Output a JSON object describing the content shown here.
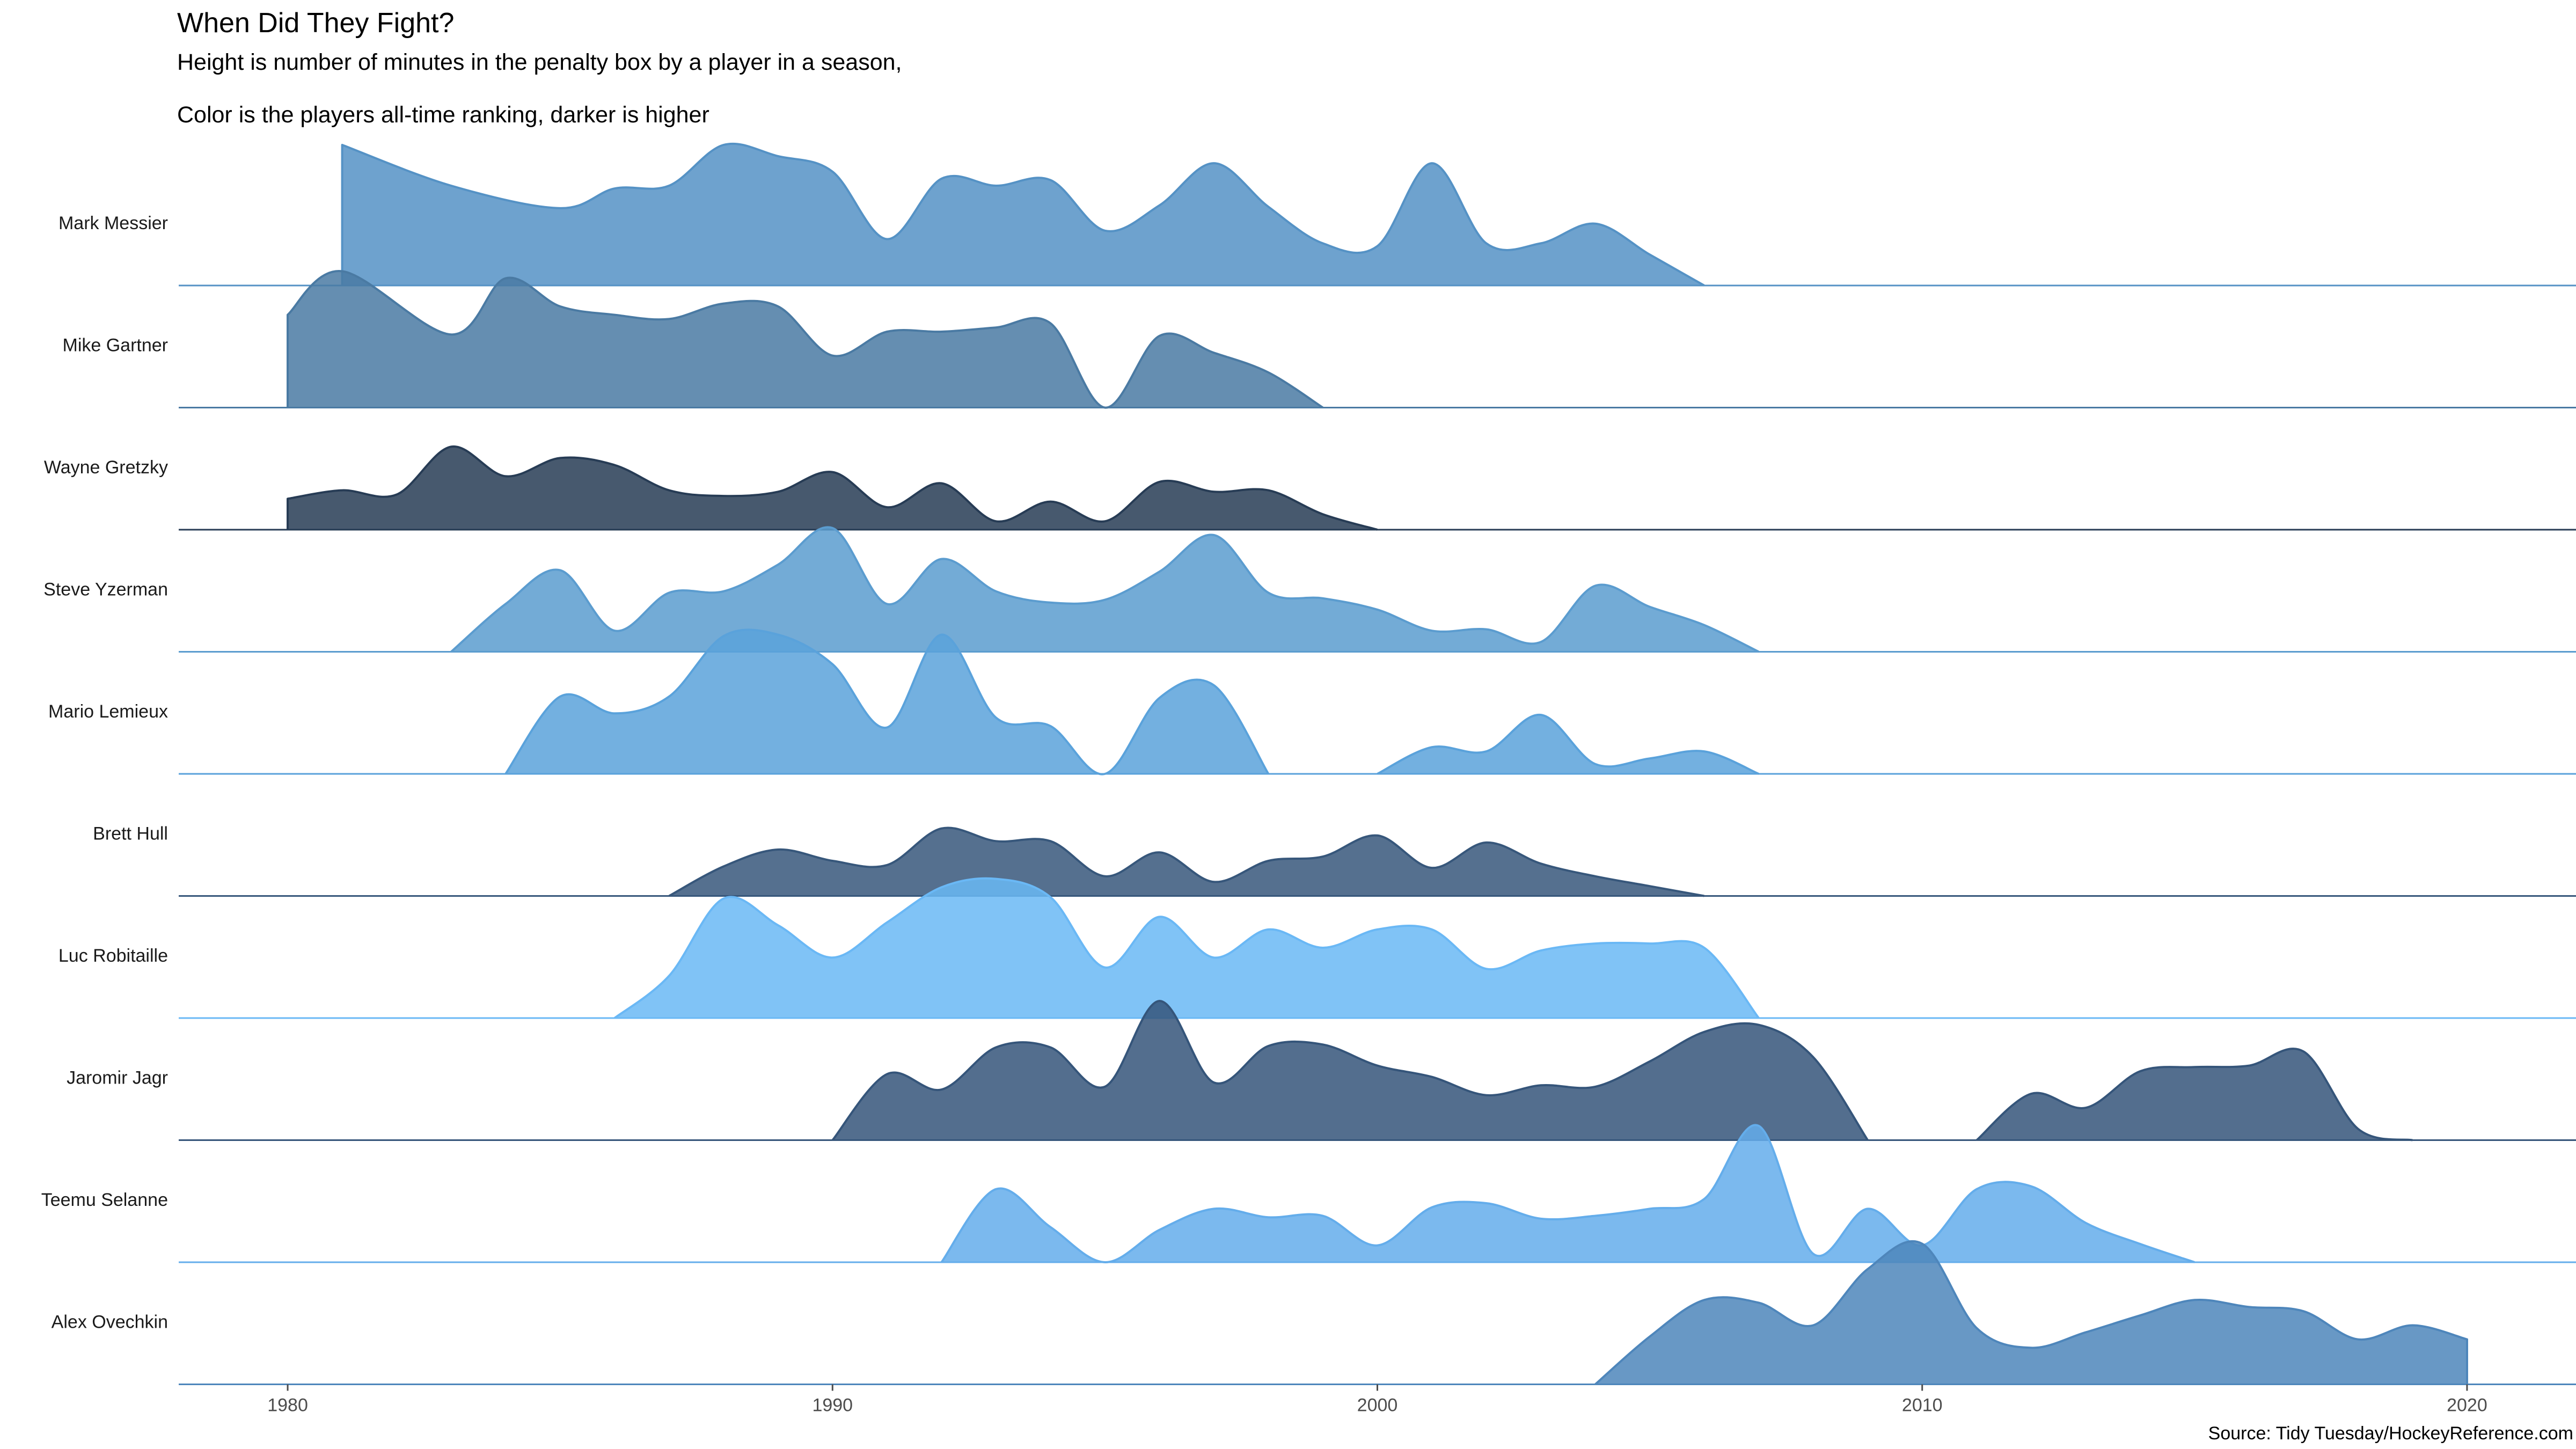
{
  "chart_data": {
    "type": "area",
    "title": "When Did They Fight?",
    "subtitle_lines": [
      "Height is number of minutes in the penalty box by a player in a season,",
      "Color is the players all-time ranking, darker is higher"
    ],
    "caption": "Source: Tidy Tuesday/HockeyReference.com",
    "x_ticks": [
      "1980",
      "1990",
      "2000",
      "2010",
      "2020"
    ],
    "xlim": [
      1978,
      2022
    ],
    "grid": false,
    "legend": "none",
    "series": [
      {
        "name": "Mark Messier",
        "color": "#5592c5",
        "points": [
          [
            1981,
            1.0
          ],
          [
            1983,
            0.71
          ],
          [
            1985,
            0.55
          ],
          [
            1986,
            0.69
          ],
          [
            1987,
            0.71
          ],
          [
            1988,
            1.0
          ],
          [
            1989,
            0.92
          ],
          [
            1990,
            0.81
          ],
          [
            1991,
            0.33
          ],
          [
            1992,
            0.76
          ],
          [
            1993,
            0.71
          ],
          [
            1994,
            0.75
          ],
          [
            1995,
            0.39
          ],
          [
            1996,
            0.57
          ],
          [
            1997,
            0.87
          ],
          [
            1998,
            0.56
          ],
          [
            1999,
            0.3
          ],
          [
            2000,
            0.28
          ],
          [
            2001,
            0.87
          ],
          [
            2002,
            0.3
          ],
          [
            2003,
            0.3
          ],
          [
            2004,
            0.44
          ],
          [
            2005,
            0.22
          ],
          [
            2006,
            0.0
          ]
        ]
      },
      {
        "name": "Mike Gartner",
        "color": "#4a7aa3",
        "points": [
          [
            1980,
            0.66
          ],
          [
            1981,
            0.97
          ],
          [
            1983,
            0.52
          ],
          [
            1984,
            0.92
          ],
          [
            1985,
            0.72
          ],
          [
            1986,
            0.66
          ],
          [
            1987,
            0.63
          ],
          [
            1988,
            0.74
          ],
          [
            1989,
            0.72
          ],
          [
            1990,
            0.37
          ],
          [
            1991,
            0.54
          ],
          [
            1992,
            0.54
          ],
          [
            1993,
            0.57
          ],
          [
            1994,
            0.6
          ],
          [
            1995,
            0.0
          ],
          [
            1996,
            0.51
          ],
          [
            1997,
            0.39
          ],
          [
            1998,
            0.25
          ],
          [
            1999,
            0.0
          ]
        ]
      },
      {
        "name": "Wayne Gretzky",
        "color": "#273c55",
        "points": [
          [
            1980,
            0.22
          ],
          [
            1981,
            0.28
          ],
          [
            1982,
            0.25
          ],
          [
            1983,
            0.59
          ],
          [
            1984,
            0.38
          ],
          [
            1985,
            0.51
          ],
          [
            1986,
            0.46
          ],
          [
            1987,
            0.28
          ],
          [
            1988,
            0.24
          ],
          [
            1989,
            0.27
          ],
          [
            1990,
            0.41
          ],
          [
            1991,
            0.16
          ],
          [
            1992,
            0.33
          ],
          [
            1993,
            0.06
          ],
          [
            1994,
            0.2
          ],
          [
            1995,
            0.06
          ],
          [
            1996,
            0.34
          ],
          [
            1997,
            0.27
          ],
          [
            1998,
            0.28
          ],
          [
            1999,
            0.11
          ],
          [
            2000,
            0.0
          ]
        ]
      },
      {
        "name": "Steve Yzerman",
        "color": "#5b9ccf",
        "points": [
          [
            1983,
            0.0
          ],
          [
            1984,
            0.34
          ],
          [
            1985,
            0.58
          ],
          [
            1986,
            0.15
          ],
          [
            1987,
            0.42
          ],
          [
            1988,
            0.43
          ],
          [
            1989,
            0.62
          ],
          [
            1990,
            0.88
          ],
          [
            1991,
            0.34
          ],
          [
            1992,
            0.66
          ],
          [
            1993,
            0.43
          ],
          [
            1994,
            0.35
          ],
          [
            1995,
            0.37
          ],
          [
            1996,
            0.57
          ],
          [
            1997,
            0.83
          ],
          [
            1998,
            0.42
          ],
          [
            1999,
            0.38
          ],
          [
            2000,
            0.3
          ],
          [
            2001,
            0.15
          ],
          [
            2002,
            0.16
          ],
          [
            2003,
            0.07
          ],
          [
            2004,
            0.47
          ],
          [
            2005,
            0.32
          ],
          [
            2006,
            0.19
          ],
          [
            2007,
            0.0
          ]
        ]
      },
      {
        "name": "Mario Lemieux",
        "color": "#5aa2db",
        "points": [
          [
            1984,
            0.0
          ],
          [
            1985,
            0.55
          ],
          [
            1986,
            0.43
          ],
          [
            1987,
            0.55
          ],
          [
            1988,
            0.98
          ],
          [
            1989,
            0.99
          ],
          [
            1990,
            0.78
          ],
          [
            1991,
            0.33
          ],
          [
            1992,
            0.99
          ],
          [
            1993,
            0.4
          ],
          [
            1994,
            0.34
          ],
          [
            1995,
            0.0
          ],
          [
            1996,
            0.54
          ],
          [
            1997,
            0.63
          ],
          [
            1998,
            0.0
          ],
          [
            2000,
            0.0
          ],
          [
            2001,
            0.19
          ],
          [
            2002,
            0.16
          ],
          [
            2003,
            0.42
          ],
          [
            2004,
            0.07
          ],
          [
            2005,
            0.11
          ],
          [
            2006,
            0.16
          ],
          [
            2007,
            0.0
          ]
        ]
      },
      {
        "name": "Brett Hull",
        "color": "#37577b",
        "points": [
          [
            1987,
            0.0
          ],
          [
            1988,
            0.21
          ],
          [
            1989,
            0.33
          ],
          [
            1990,
            0.25
          ],
          [
            1991,
            0.22
          ],
          [
            1992,
            0.48
          ],
          [
            1993,
            0.39
          ],
          [
            1994,
            0.39
          ],
          [
            1995,
            0.14
          ],
          [
            1996,
            0.31
          ],
          [
            1997,
            0.1
          ],
          [
            1998,
            0.25
          ],
          [
            1999,
            0.28
          ],
          [
            2000,
            0.43
          ],
          [
            2001,
            0.2
          ],
          [
            2002,
            0.38
          ],
          [
            2003,
            0.23
          ],
          [
            2004,
            0.14
          ],
          [
            2005,
            0.07
          ],
          [
            2006,
            0.0
          ]
        ]
      },
      {
        "name": "Luc Robitaille",
        "color": "#6ab8f5",
        "points": [
          [
            1986,
            0.0
          ],
          [
            1987,
            0.3
          ],
          [
            1988,
            0.85
          ],
          [
            1989,
            0.66
          ],
          [
            1990,
            0.43
          ],
          [
            1991,
            0.68
          ],
          [
            1992,
            0.93
          ],
          [
            1993,
            0.99
          ],
          [
            1994,
            0.86
          ],
          [
            1995,
            0.36
          ],
          [
            1996,
            0.72
          ],
          [
            1997,
            0.43
          ],
          [
            1998,
            0.63
          ],
          [
            1999,
            0.5
          ],
          [
            2000,
            0.63
          ],
          [
            2001,
            0.63
          ],
          [
            2002,
            0.35
          ],
          [
            2003,
            0.48
          ],
          [
            2004,
            0.53
          ],
          [
            2005,
            0.53
          ],
          [
            2006,
            0.5
          ],
          [
            2007,
            0.0
          ]
        ]
      },
      {
        "name": "Jaromir Jagr",
        "color": "#35557a",
        "points": [
          [
            1990,
            0.0
          ],
          [
            1991,
            0.47
          ],
          [
            1992,
            0.36
          ],
          [
            1993,
            0.66
          ],
          [
            1994,
            0.66
          ],
          [
            1995,
            0.38
          ],
          [
            1996,
            0.99
          ],
          [
            1997,
            0.41
          ],
          [
            1998,
            0.67
          ],
          [
            1999,
            0.68
          ],
          [
            2000,
            0.53
          ],
          [
            2001,
            0.45
          ],
          [
            2002,
            0.32
          ],
          [
            2003,
            0.39
          ],
          [
            2004,
            0.38
          ],
          [
            2005,
            0.56
          ],
          [
            2006,
            0.77
          ],
          [
            2007,
            0.82
          ],
          [
            2008,
            0.59
          ],
          [
            2009,
            0.0
          ],
          [
            2011,
            0.0
          ],
          [
            2012,
            0.33
          ],
          [
            2013,
            0.23
          ],
          [
            2014,
            0.49
          ],
          [
            2015,
            0.52
          ],
          [
            2016,
            0.53
          ],
          [
            2017,
            0.63
          ],
          [
            2018,
            0.08
          ],
          [
            2019,
            0.0
          ]
        ]
      },
      {
        "name": "Teemu Selanne",
        "color": "#64adeb",
        "points": [
          [
            1992,
            0.0
          ],
          [
            1993,
            0.52
          ],
          [
            1994,
            0.25
          ],
          [
            1995,
            0.0
          ],
          [
            1996,
            0.23
          ],
          [
            1997,
            0.38
          ],
          [
            1998,
            0.32
          ],
          [
            1999,
            0.33
          ],
          [
            2000,
            0.12
          ],
          [
            2001,
            0.39
          ],
          [
            2002,
            0.42
          ],
          [
            2003,
            0.31
          ],
          [
            2004,
            0.33
          ],
          [
            2005,
            0.38
          ],
          [
            2006,
            0.45
          ],
          [
            2007,
            0.97
          ],
          [
            2008,
            0.06
          ],
          [
            2009,
            0.38
          ],
          [
            2010,
            0.12
          ],
          [
            2011,
            0.52
          ],
          [
            2012,
            0.54
          ],
          [
            2013,
            0.28
          ],
          [
            2014,
            0.13
          ],
          [
            2015,
            0.0
          ]
        ]
      },
      {
        "name": "Alex Ovechkin",
        "color": "#4e86bb",
        "points": [
          [
            2004,
            0.0
          ],
          [
            2005,
            0.34
          ],
          [
            2006,
            0.6
          ],
          [
            2007,
            0.58
          ],
          [
            2008,
            0.42
          ],
          [
            2009,
            0.82
          ],
          [
            2010,
            1.0
          ],
          [
            2011,
            0.4
          ],
          [
            2012,
            0.26
          ],
          [
            2013,
            0.37
          ],
          [
            2014,
            0.49
          ],
          [
            2015,
            0.6
          ],
          [
            2016,
            0.55
          ],
          [
            2017,
            0.52
          ],
          [
            2018,
            0.32
          ],
          [
            2019,
            0.42
          ],
          [
            2020,
            0.32
          ]
        ]
      }
    ]
  }
}
